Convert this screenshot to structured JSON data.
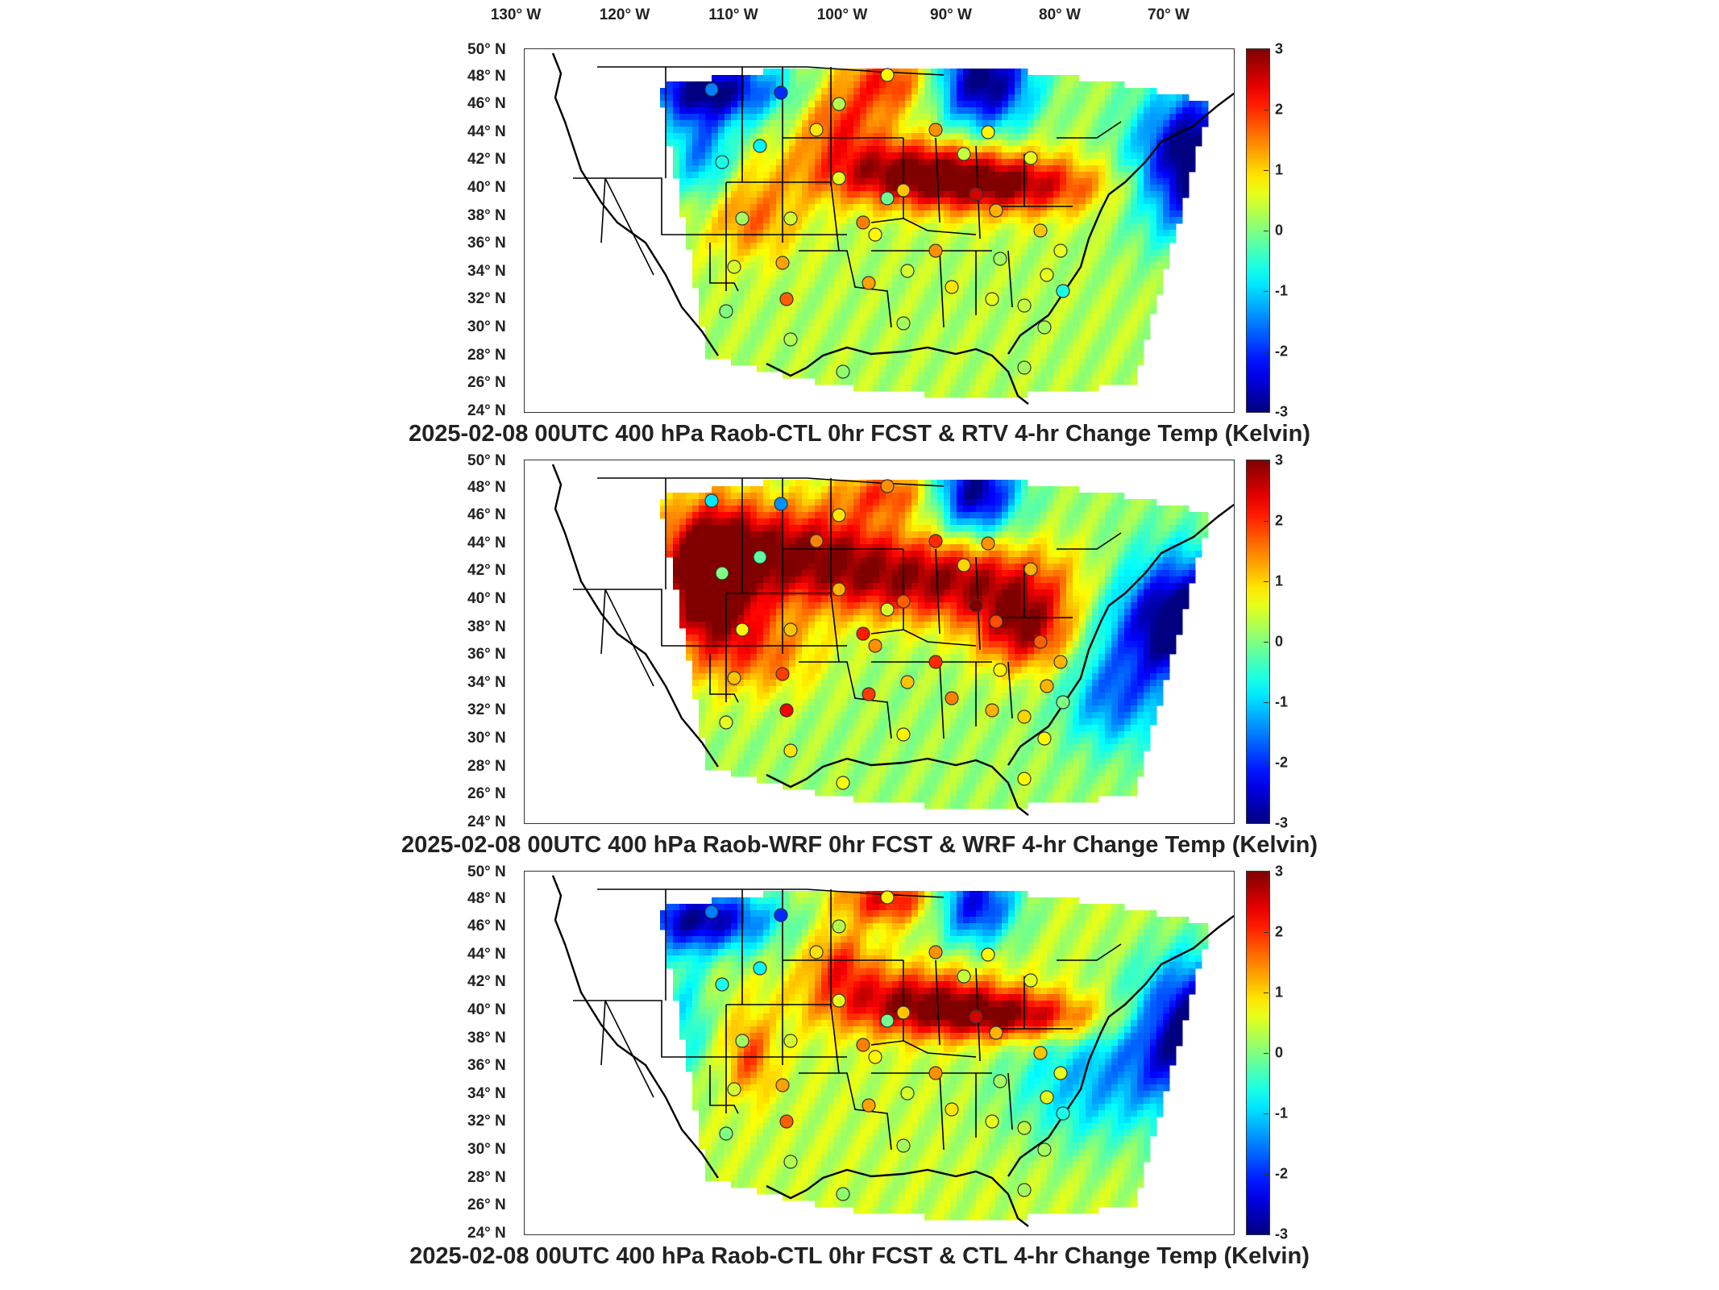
{
  "longitude_labels": [
    "130° W",
    "120° W",
    "110° W",
    "100° W",
    "90° W",
    "80° W",
    "70° W"
  ],
  "latitude_labels": [
    "50° N",
    "48° N",
    "46° N",
    "44° N",
    "42° N",
    "40° N",
    "38° N",
    "36° N",
    "34° N",
    "32° N",
    "30° N",
    "28° N",
    "26° N",
    "24° N"
  ],
  "colorbar": {
    "ticks": [
      "3",
      "2",
      "1",
      "0",
      "-1",
      "-2",
      "-3"
    ],
    "range": [
      -3,
      3
    ],
    "colormap": "jet"
  },
  "panels": [
    {
      "title": "2025-02-08 00UTC 400 hPa Raob-CTL 0hr FCST & RTV 4-hr Change Temp (Kelvin)",
      "field": "rtv"
    },
    {
      "title": "2025-02-08 00UTC 400 hPa Raob-WRF 0hr FCST & WRF 4-hr Change Temp (Kelvin)",
      "field": "wrf"
    },
    {
      "title": "2025-02-08 00UTC 400 hPa Raob-CTL 0hr FCST & CTL 4-hr Change Temp (Kelvin)",
      "field": "ctl"
    }
  ],
  "colors": {
    "dark_red": "#800000",
    "red": "#ff0000",
    "yellow": "#ffff00",
    "cyan": "#00ffff",
    "blue": "#0000ff",
    "dark_blue": "#000080"
  }
}
